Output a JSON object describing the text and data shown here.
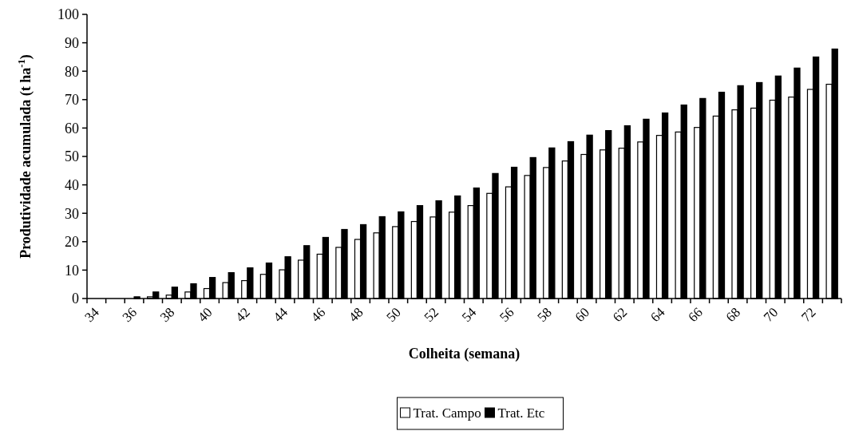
{
  "chart_data": {
    "type": "bar",
    "xlabel": "Colheita (semana)",
    "ylabel": "Produtividade acumulada (t ha$^{-1}$)",
    "categories": [
      "34",
      null,
      "36",
      null,
      "38",
      null,
      "40",
      null,
      "42",
      null,
      "44",
      null,
      "46",
      null,
      "48",
      null,
      "50",
      null,
      "52",
      null,
      "54",
      null,
      "56",
      null,
      "58",
      null,
      "60",
      null,
      "62",
      null,
      "64",
      null,
      "66",
      null,
      "68",
      null,
      "70",
      null,
      "72",
      null
    ],
    "series": [
      {
        "name": "Trat. Campo",
        "color": "#ffffff",
        "values": [
          0,
          0,
          0,
          0.6,
          1.2,
          2.3,
          3.5,
          5.6,
          6.3,
          8.5,
          10.1,
          13.5,
          15.6,
          18.0,
          20.8,
          23.1,
          25.3,
          27.1,
          28.7,
          30.4,
          32.7,
          37.0,
          39.3,
          43.3,
          46.1,
          48.4,
          50.7,
          52.3,
          52.9,
          55.1,
          57.4,
          58.6,
          60.2,
          64.2,
          66.4,
          67.0,
          69.8,
          70.9,
          73.6,
          75.4
        ]
      },
      {
        "name": "Trat. Etc",
        "color": "#000000",
        "values": [
          0,
          0,
          0.6,
          2.3,
          4.0,
          5.2,
          7.4,
          9.1,
          10.8,
          12.5,
          14.7,
          18.6,
          21.5,
          24.3,
          26.0,
          28.8,
          30.5,
          32.7,
          34.4,
          36.1,
          38.9,
          44.0,
          46.2,
          49.6,
          53.0,
          55.2,
          57.5,
          59.1,
          60.8,
          63.1,
          65.3,
          68.1,
          70.4,
          72.6,
          74.9,
          76.0,
          78.3,
          81.1,
          85.0,
          87.8
        ]
      }
    ],
    "ylim": [
      0,
      100
    ],
    "yticks": [
      0,
      10,
      20,
      30,
      40,
      50,
      60,
      70,
      80,
      90,
      100
    ],
    "grid": false,
    "legend": "bottom"
  }
}
